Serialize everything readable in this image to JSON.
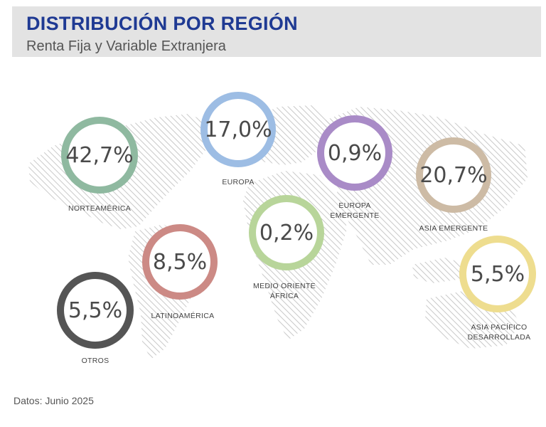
{
  "header": {
    "title": "DISTRIBUCIÓN POR REGIÓN",
    "subtitle": "Renta Fija y Variable Extranjera"
  },
  "chart_data": {
    "type": "donut",
    "title": "DISTRIBUCIÓN POR REGIÓN",
    "subtitle": "Renta Fija y Variable Extranjera",
    "value_format": "percent_comma",
    "regions": [
      {
        "label": "NORTEAMÉRICA",
        "value": 42.7,
        "display": "42,7%",
        "color": "#8fb9a0"
      },
      {
        "label": "EUROPA",
        "value": 17.0,
        "display": "17,0%",
        "color": "#9dbde4"
      },
      {
        "label": "EUROPA\nEMERGENTE",
        "value": 0.9,
        "display": "0,9%",
        "color": "#a98bc7"
      },
      {
        "label": "ASIA EMERGENTE",
        "value": 20.7,
        "display": "20,7%",
        "color": "#cdbba5"
      },
      {
        "label": "MEDIO ORIENTE\nÁFRICA",
        "value": 0.2,
        "display": "0,2%",
        "color": "#b8d59a"
      },
      {
        "label": "LATINOAMÉRICA",
        "value": 8.5,
        "display": "8,5%",
        "color": "#cc8a85"
      },
      {
        "label": "ASIA PACÍFICO\nDESARROLLADA",
        "value": 5.5,
        "display": "5,5%",
        "color": "#eedd8f"
      },
      {
        "label": "OTROS",
        "value": 5.5,
        "display": "5,5%",
        "color": "#555555"
      }
    ]
  },
  "footer": {
    "source": "Datos: Junio 2025"
  }
}
